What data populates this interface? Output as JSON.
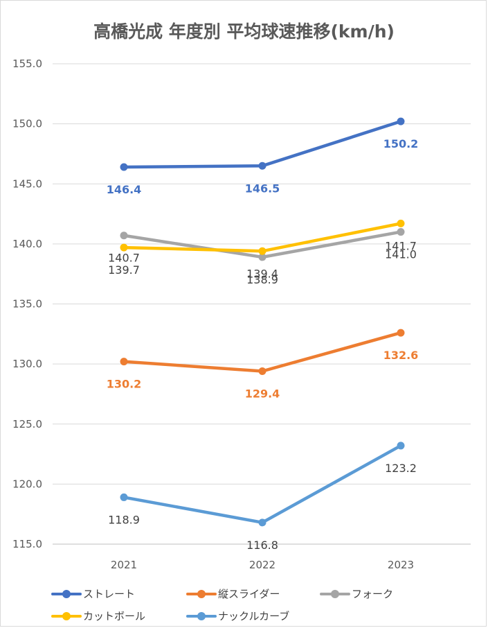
{
  "chart_data": {
    "type": "line",
    "title": "高橋光成 年度別 平均球速推移(km/h)",
    "categories": [
      "2021",
      "2022",
      "2023"
    ],
    "ylim": [
      115.0,
      155.0
    ],
    "yticks": [
      "115.0",
      "120.0",
      "125.0",
      "130.0",
      "135.0",
      "140.0",
      "145.0",
      "150.0",
      "155.0"
    ],
    "grid": true,
    "legend_position": "bottom",
    "series": [
      {
        "name": "ストレート",
        "color": "#4472c4",
        "values": [
          146.4,
          146.5,
          150.2
        ],
        "labels": [
          "146.4",
          "146.5",
          "150.2"
        ],
        "label_color": "#4472c4",
        "bold": true,
        "label_pos": "below"
      },
      {
        "name": "縦スライダー",
        "color": "#ed7d31",
        "values": [
          130.2,
          129.4,
          132.6
        ],
        "labels": [
          "130.2",
          "129.4",
          "132.6"
        ],
        "label_color": "#ed7d31",
        "bold": true,
        "label_pos": "below"
      },
      {
        "name": "フォーク",
        "color": "#a5a5a5",
        "values": [
          140.7,
          138.9,
          141.0
        ],
        "labels": [
          "140.7",
          "138.9",
          "141.0"
        ],
        "label_color": "#404040",
        "bold": false,
        "label_pos": "below"
      },
      {
        "name": "カットボール",
        "color": "#ffc000",
        "values": [
          139.7,
          139.4,
          141.7
        ],
        "labels": [
          "139.7",
          "139.4",
          "141.7"
        ],
        "label_color": "#404040",
        "bold": false,
        "label_pos": "below"
      },
      {
        "name": "ナックルカーブ",
        "color": "#5b9bd5",
        "values": [
          118.9,
          116.8,
          123.2
        ],
        "labels": [
          "118.9",
          "116.8",
          "123.2"
        ],
        "label_color": "#404040",
        "bold": false,
        "label_pos": "below"
      }
    ]
  }
}
